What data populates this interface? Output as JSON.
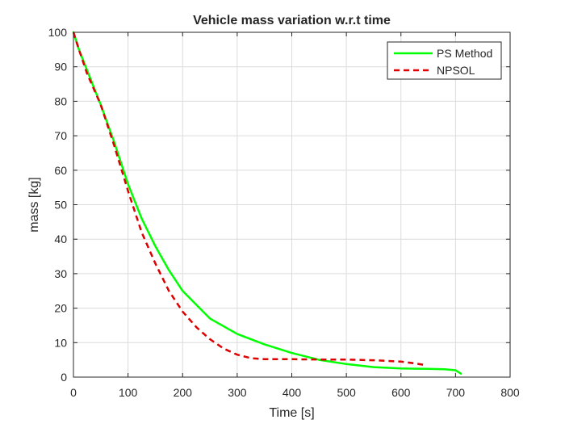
{
  "chart_data": {
    "type": "line",
    "title": "Vehicle mass variation w.r.t time",
    "xlabel": "Time [s]",
    "ylabel": "mass [kg]",
    "xlim": [
      0,
      800
    ],
    "ylim": [
      0,
      100
    ],
    "xticks": [
      0,
      100,
      200,
      300,
      400,
      500,
      600,
      700,
      800
    ],
    "yticks": [
      0,
      10,
      20,
      30,
      40,
      50,
      60,
      70,
      80,
      90,
      100
    ],
    "grid": true,
    "legend_position": "top-right",
    "series": [
      {
        "name": "PS Method",
        "color": "#00ff00",
        "line_style": "solid",
        "x": [
          0,
          10,
          25,
          50,
          75,
          100,
          125,
          150,
          175,
          200,
          250,
          300,
          350,
          400,
          450,
          500,
          550,
          600,
          650,
          680,
          700,
          710
        ],
        "y": [
          100,
          95,
          89,
          79,
          68,
          56,
          46,
          38,
          31,
          25,
          17,
          12.5,
          9.5,
          7,
          5,
          3.8,
          2.9,
          2.5,
          2.4,
          2.3,
          2.0,
          1.0
        ]
      },
      {
        "name": "NPSOL",
        "color": "#dd0000",
        "line_style": "dashed",
        "x": [
          0,
          10,
          25,
          50,
          75,
          100,
          125,
          150,
          175,
          200,
          225,
          250,
          275,
          300,
          325,
          350,
          400,
          450,
          500,
          550,
          600,
          625,
          645
        ],
        "y": [
          100,
          95,
          88,
          79,
          67,
          54,
          42,
          33,
          25,
          19,
          14.5,
          11,
          8.3,
          6.5,
          5.5,
          5.2,
          5.2,
          5.1,
          5.1,
          4.9,
          4.5,
          4.0,
          3.5
        ]
      }
    ]
  }
}
